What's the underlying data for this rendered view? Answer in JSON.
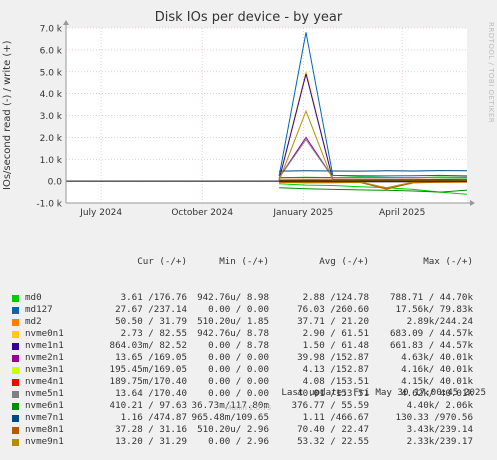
{
  "chart_data": {
    "type": "line",
    "title": "Disk IOs per device - by year",
    "ylabel": "IOs/second read (-) / write (+)",
    "ylim": [
      -1000,
      7000
    ],
    "yticks": [
      {
        "v": 7000,
        "label": "7.0 k"
      },
      {
        "v": 6000,
        "label": "6.0 k"
      },
      {
        "v": 5000,
        "label": "5.0 k"
      },
      {
        "v": 4000,
        "label": "4.0 k"
      },
      {
        "v": 3000,
        "label": "3.0 k"
      },
      {
        "v": 2000,
        "label": "2.0 k"
      },
      {
        "v": 1000,
        "label": "1.0 k"
      },
      {
        "v": 0,
        "label": "0.0"
      },
      {
        "v": -1000,
        "label": "-1.0 k"
      }
    ],
    "xlim": [
      "2024-05-30",
      "2025-05-30"
    ],
    "xticks": [
      {
        "date": "2024-07-01",
        "label": "July 2024"
      },
      {
        "date": "2024-10-01",
        "label": "October 2024"
      },
      {
        "date": "2025-01-01",
        "label": "January 2025"
      },
      {
        "date": "2025-04-01",
        "label": "April 2025"
      }
    ],
    "data_start": "2024-12-10",
    "grid": true,
    "series": [
      {
        "name": "md0",
        "color": "#00cc00",
        "cur": "3.61 /176.76",
        "min": "942.76u/ 8.98",
        "avg": "2.88 /124.78",
        "max": "788.71 / 44.70k",
        "write": [
          150,
          180,
          160,
          200,
          170,
          150,
          190,
          176
        ],
        "read": [
          -120,
          -180,
          -200,
          -260,
          -300,
          -380,
          -500,
          -600
        ]
      },
      {
        "name": "md127",
        "color": "#0066b3",
        "cur": "27.67 /237.14",
        "min": "0.00 / 0.00",
        "avg": "76.03 /260.60",
        "max": "17.56k/ 79.83k",
        "write": [
          230,
          6800,
          260,
          250,
          240,
          250,
          260,
          237
        ],
        "read": [
          -20,
          -30,
          -25,
          -30,
          -25,
          -30,
          -28,
          -27
        ]
      },
      {
        "name": "md2",
        "color": "#ff8000",
        "cur": "50.50 / 31.79",
        "min": "510.20u/ 1.85",
        "avg": "37.71 / 21.20",
        "max": "2.89k/244.24",
        "write": [
          20,
          25,
          30,
          20,
          25,
          30,
          25,
          31
        ],
        "read": [
          -40,
          -60,
          -50,
          -40,
          -380,
          -60,
          -50,
          -50
        ]
      },
      {
        "name": "nvme0n1",
        "color": "#ffcc00",
        "cur": "2.73 / 82.55",
        "min": "942.76u/ 8.78",
        "avg": "2.90 / 61.51",
        "max": "683.09 / 44.57k",
        "write": [
          60,
          5000,
          70,
          65,
          60,
          70,
          80,
          82
        ],
        "read": [
          -5,
          -5,
          -5,
          -5,
          -5,
          -5,
          -5,
          -3
        ]
      },
      {
        "name": "nvme1n1",
        "color": "#330099",
        "cur": "864.03m/ 82.52",
        "min": "0.00 / 8.78",
        "avg": "1.50 / 61.48",
        "max": "661.83 / 44.57k",
        "write": [
          60,
          4900,
          65,
          60,
          65,
          60,
          75,
          82
        ],
        "read": [
          -2,
          -2,
          -2,
          -2,
          -2,
          -2,
          -2,
          -1
        ]
      },
      {
        "name": "nvme2n1",
        "color": "#990099",
        "cur": "13.65 /169.05",
        "min": "0.00 / 0.00",
        "avg": "39.98 /152.87",
        "max": "4.63k/ 40.01k",
        "write": [
          150,
          2000,
          160,
          150,
          155,
          160,
          165,
          169
        ],
        "read": [
          -30,
          -40,
          -35,
          -40,
          -35,
          -40,
          -20,
          -14
        ]
      },
      {
        "name": "nvme3n1",
        "color": "#ccff00",
        "cur": "195.45m/169.05",
        "min": "0.00 / 0.00",
        "avg": "4.13 /152.87",
        "max": "4.16k/ 40.01k",
        "write": [
          150,
          160,
          155,
          150,
          160,
          155,
          165,
          169
        ],
        "read": [
          -3,
          -4,
          -3,
          -4,
          -3,
          -4,
          -2,
          0
        ]
      },
      {
        "name": "nvme4n1",
        "color": "#ff0000",
        "cur": "189.75m/170.40",
        "min": "0.00 / 0.00",
        "avg": "4.08 /153.51",
        "max": "4.15k/ 40.01k",
        "write": [
          150,
          160,
          155,
          150,
          160,
          155,
          165,
          170
        ],
        "read": [
          -3,
          -4,
          -3,
          -4,
          -3,
          -4,
          -2,
          0
        ]
      },
      {
        "name": "nvme5n1",
        "color": "#808080",
        "cur": "13.64 /170.40",
        "min": "0.00 / 0.00",
        "avg": "40.01 /153.51",
        "max": "4.62k/ 40.01k",
        "write": [
          150,
          1900,
          160,
          150,
          155,
          160,
          165,
          170
        ],
        "read": [
          -30,
          -40,
          -35,
          -40,
          -35,
          -40,
          -20,
          -14
        ]
      },
      {
        "name": "nvme6n1",
        "color": "#008f00",
        "cur": "410.21 / 97.63",
        "min": "36.73m/117.80m",
        "avg": "376.77 / 55.59",
        "max": "4.40k/ 2.06k",
        "write": [
          50,
          60,
          55,
          50,
          60,
          55,
          90,
          98
        ],
        "read": [
          -300,
          -350,
          -380,
          -400,
          -420,
          -450,
          -500,
          -410
        ]
      },
      {
        "name": "nvme7n1",
        "color": "#00487d",
        "cur": "1.16 /474.87",
        "min": "965.48m/109.65",
        "avg": "1.11 /466.67",
        "max": "130.33 /970.56",
        "write": [
          460,
          470,
          465,
          460,
          470,
          465,
          480,
          475
        ],
        "read": [
          -1,
          -1,
          -1,
          -1,
          -1,
          -1,
          -1,
          -1
        ]
      },
      {
        "name": "nvme8n1",
        "color": "#b35a00",
        "cur": "37.28 / 31.16",
        "min": "510.20u/ 2.96",
        "avg": "70.40 / 22.47",
        "max": "3.43k/239.14",
        "write": [
          20,
          25,
          30,
          20,
          25,
          30,
          25,
          31
        ],
        "read": [
          -60,
          -80,
          -70,
          -60,
          -350,
          -80,
          -50,
          -37
        ]
      },
      {
        "name": "nvme9n1",
        "color": "#b38f00",
        "cur": "13.20 / 31.29",
        "min": "0.00 / 2.96",
        "avg": "53.32 / 22.55",
        "max": "2.33k/239.17",
        "write": [
          20,
          3200,
          30,
          20,
          25,
          30,
          25,
          31
        ],
        "read": [
          -30,
          -40,
          -35,
          -30,
          -300,
          -40,
          -20,
          -13
        ]
      }
    ]
  },
  "legend_headers": {
    "cur": "Cur (-/+)",
    "min": "Min (-/+)",
    "avg": "Avg (-/+)",
    "max": "Max (-/+)"
  },
  "footer": {
    "last_update": "Last update: Fri May 30 17:00:45 2025"
  },
  "branding": {
    "rrd": "RRDTOOL / TOBI OETIKER",
    "munin": "Munin 2.0.75"
  }
}
